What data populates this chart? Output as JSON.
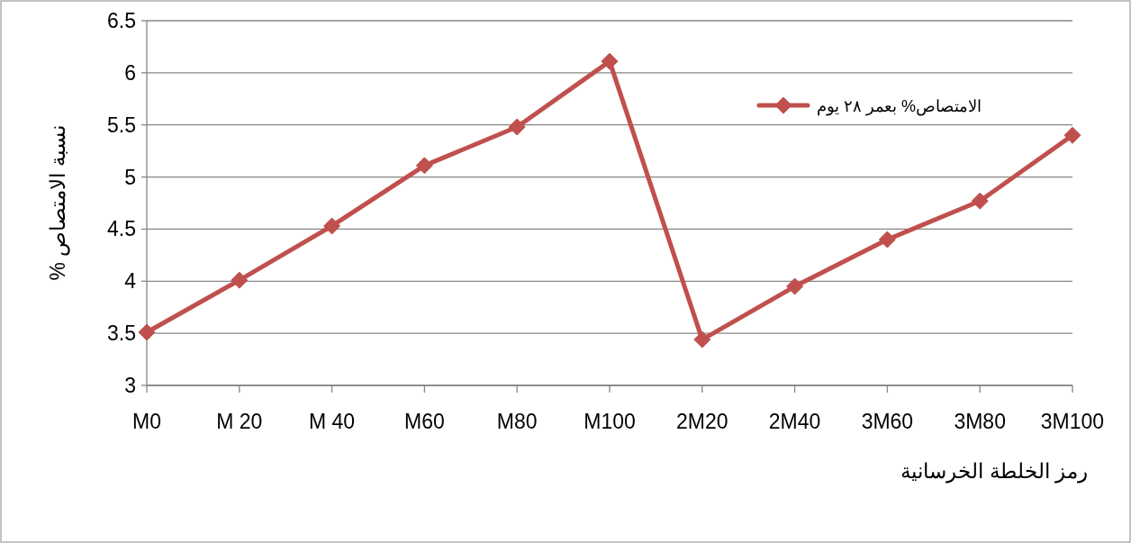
{
  "chart_data": {
    "type": "line",
    "xlabel": "رمز الخلطة الخرسانية",
    "ylabel": "نسبة الامتصاص %",
    "categories": [
      "M0",
      "M 20",
      "M 40",
      "M60",
      "M80",
      "M100",
      "2M20",
      "2M40",
      "3M60",
      "3M80",
      "3M100"
    ],
    "series": [
      {
        "name": "الامتصاص% بعمر ٢٨ يوم",
        "color": "#c0504d",
        "values": [
          3.51,
          4.01,
          4.53,
          5.11,
          5.48,
          6.11,
          3.44,
          3.95,
          4.4,
          4.77,
          5.4
        ]
      }
    ],
    "ylim": [
      3,
      6.5
    ],
    "yticks": [
      3,
      3.5,
      4,
      4.5,
      5,
      5.5,
      6,
      6.5
    ],
    "grid": "y",
    "legend": "top right",
    "marker": "diamond",
    "line_style": "solid"
  }
}
